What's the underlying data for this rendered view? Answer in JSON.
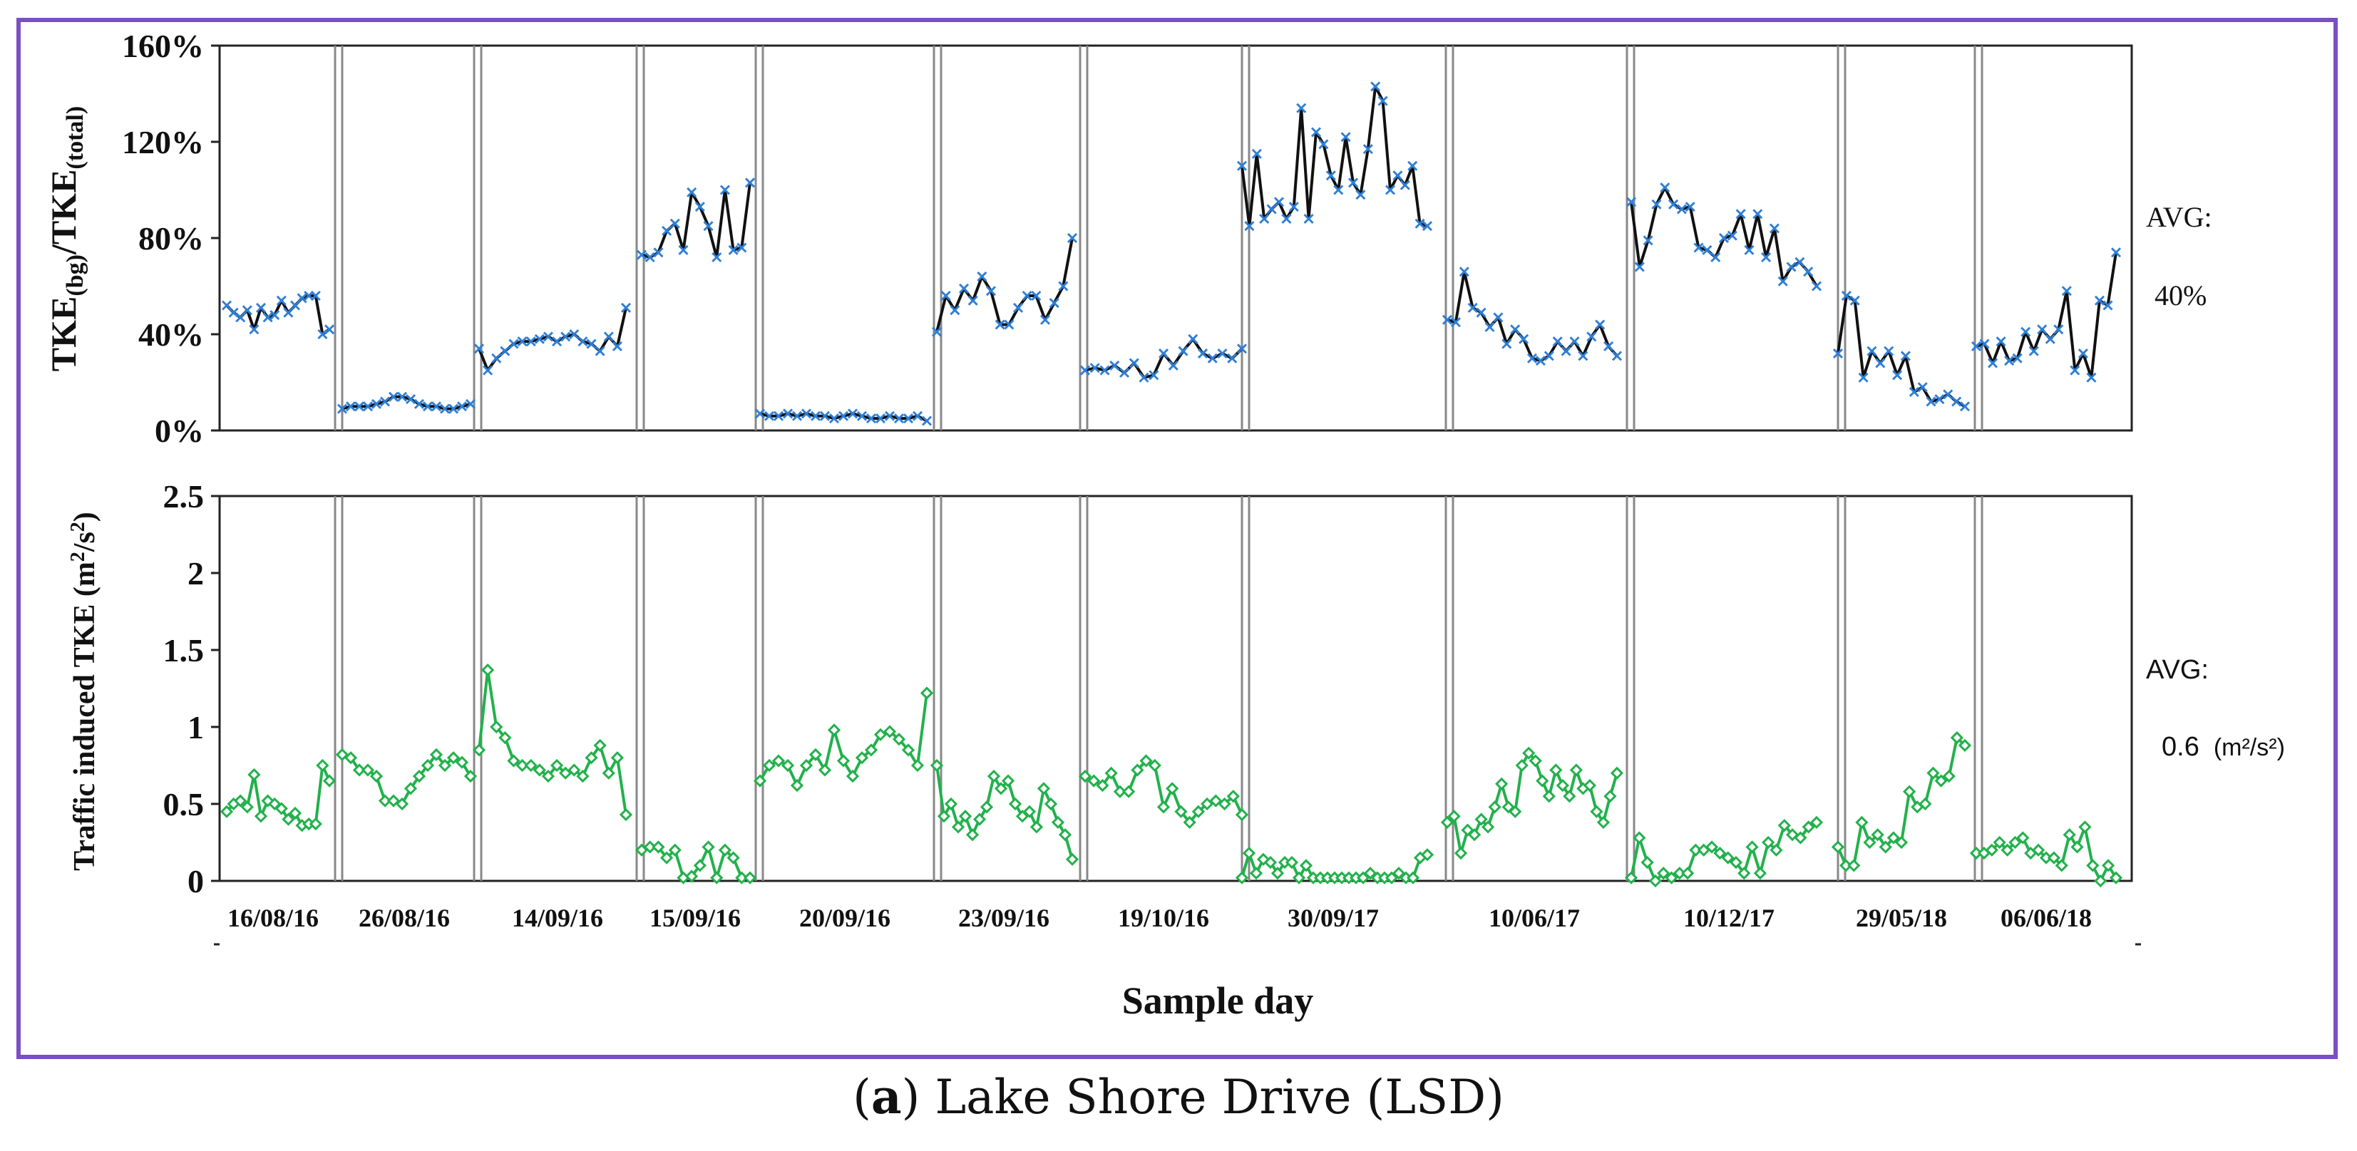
{
  "caption": {
    "letter": "a",
    "text": "Lake Shore Drive (LSD)"
  },
  "xlabel": "Sample day",
  "day_labels": [
    "16/08/16",
    "26/08/16",
    "14/09/16",
    "15/09/16",
    "20/09/16",
    "23/09/16",
    "19/10/16",
    "30/09/17",
    "10/06/17",
    "10/12/17",
    "29/05/18",
    "06/06/18"
  ],
  "top_panel": {
    "ylabel_html": "TKE(bg)/TKE(total)",
    "ylabel_parts": [
      "TKE",
      "(bg)",
      "/TKE",
      "(total)"
    ],
    "avg_label": "AVG:",
    "avg_value": "40%",
    "series_color": "#111111",
    "marker_color": "#2f7fd6"
  },
  "bottom_panel": {
    "ylabel_main": "Traffic induced TKE (m",
    "ylabel_unit_tail": "/s",
    "avg_label": "AVG:",
    "avg_value": "0.6",
    "avg_unit": "(m²/s²)",
    "series_color": "#22b14c",
    "marker_color": "#22b14c"
  },
  "chart_data": [
    {
      "type": "line",
      "title": "",
      "xlabel": "Sample day",
      "ylabel": "TKE(bg)/TKE(total)",
      "ylim": [
        0,
        160
      ],
      "yticks": [
        0,
        40,
        80,
        120,
        160
      ],
      "ytick_labels": [
        "0%",
        "40%",
        "80%",
        "120%",
        "160%"
      ],
      "series": [
        {
          "name": "16/08/16",
          "values": [
            52,
            49,
            47,
            50,
            42,
            51,
            47,
            48,
            54,
            49,
            52,
            55,
            56,
            56,
            40,
            42
          ]
        },
        {
          "name": "26/08/16",
          "values": [
            9,
            10,
            10,
            10,
            11,
            12,
            14,
            14,
            13,
            11,
            10,
            10,
            9,
            9,
            10,
            11
          ]
        },
        {
          "name": "14/09/16",
          "values": [
            34,
            25,
            30,
            33,
            36,
            37,
            37,
            38,
            39,
            37,
            39,
            40,
            37,
            36,
            33,
            39,
            35,
            51
          ]
        },
        {
          "name": "15/09/16",
          "values": [
            73,
            72,
            74,
            83,
            86,
            75,
            99,
            93,
            85,
            72,
            100,
            75,
            76,
            103
          ]
        },
        {
          "name": "20/09/16",
          "values": [
            7,
            6,
            6,
            7,
            6,
            7,
            6,
            6,
            5,
            6,
            7,
            6,
            5,
            5,
            6,
            5,
            5,
            6,
            4
          ]
        },
        {
          "name": "23/09/16",
          "values": [
            41,
            56,
            50,
            59,
            54,
            64,
            58,
            44,
            44,
            51,
            56,
            56,
            46,
            53,
            60,
            80
          ]
        },
        {
          "name": "19/10/16",
          "values": [
            25,
            26,
            25,
            27,
            24,
            28,
            22,
            23,
            32,
            27,
            33,
            38,
            32,
            30,
            32,
            30,
            34
          ]
        },
        {
          "name": "30/09/17",
          "values": [
            110,
            85,
            115,
            88,
            92,
            95,
            88,
            93,
            134,
            88,
            124,
            119,
            106,
            100,
            122,
            103,
            98,
            117,
            143,
            137,
            100,
            106,
            102,
            110,
            86,
            85
          ]
        },
        {
          "name": "10/06/17",
          "values": [
            46,
            45,
            66,
            51,
            49,
            43,
            47,
            36,
            42,
            38,
            30,
            29,
            31,
            37,
            33,
            37,
            31,
            39,
            44,
            35,
            31
          ]
        },
        {
          "name": "10/12/17",
          "values": [
            95,
            68,
            79,
            94,
            101,
            94,
            92,
            93,
            76,
            75,
            72,
            80,
            81,
            90,
            75,
            90,
            72,
            84,
            62,
            68,
            70,
            66,
            60
          ]
        },
        {
          "name": "29/05/18",
          "values": [
            32,
            56,
            54,
            22,
            33,
            28,
            33,
            23,
            31,
            16,
            18,
            12,
            13,
            15,
            12,
            10
          ]
        },
        {
          "name": "06/06/18",
          "values": [
            35,
            36,
            28,
            37,
            29,
            30,
            41,
            33,
            42,
            38,
            42,
            58,
            25,
            32,
            22,
            54,
            52,
            74
          ]
        }
      ]
    },
    {
      "type": "line",
      "title": "",
      "xlabel": "Sample day",
      "ylabel": "Traffic induced TKE (m²/s²)",
      "ylim": [
        0,
        2.5
      ],
      "yticks": [
        0,
        0.5,
        1,
        1.5,
        2,
        2.5
      ],
      "ytick_labels": [
        "0",
        "0.5",
        "1",
        "1.5",
        "2",
        "2.5"
      ],
      "series": [
        {
          "name": "16/08/16",
          "values": [
            0.45,
            0.5,
            0.52,
            0.48,
            0.69,
            0.42,
            0.52,
            0.5,
            0.47,
            0.4,
            0.44,
            0.36,
            0.37,
            0.37,
            0.75,
            0.65
          ]
        },
        {
          "name": "26/08/16",
          "values": [
            0.82,
            0.8,
            0.72,
            0.72,
            0.68,
            0.52,
            0.52,
            0.5,
            0.6,
            0.68,
            0.75,
            0.82,
            0.75,
            0.8,
            0.77,
            0.68
          ]
        },
        {
          "name": "14/09/16",
          "values": [
            0.85,
            1.37,
            1.0,
            0.93,
            0.78,
            0.75,
            0.75,
            0.72,
            0.68,
            0.75,
            0.7,
            0.72,
            0.68,
            0.8,
            0.88,
            0.7,
            0.8,
            0.43
          ]
        },
        {
          "name": "15/09/16",
          "values": [
            0.2,
            0.22,
            0.22,
            0.15,
            0.2,
            0.02,
            0.03,
            0.1,
            0.22,
            0.02,
            0.2,
            0.15,
            0.02,
            0.02
          ]
        },
        {
          "name": "20/09/16",
          "values": [
            0.65,
            0.75,
            0.78,
            0.75,
            0.62,
            0.75,
            0.82,
            0.72,
            0.98,
            0.78,
            0.68,
            0.8,
            0.85,
            0.95,
            0.97,
            0.92,
            0.85,
            0.75,
            1.22
          ]
        },
        {
          "name": "23/09/16",
          "values": [
            0.75,
            0.42,
            0.5,
            0.35,
            0.42,
            0.3,
            0.4,
            0.48,
            0.68,
            0.6,
            0.65,
            0.5,
            0.42,
            0.45,
            0.35,
            0.6,
            0.5,
            0.38,
            0.3,
            0.14
          ]
        },
        {
          "name": "19/10/16",
          "values": [
            0.68,
            0.65,
            0.62,
            0.7,
            0.58,
            0.58,
            0.72,
            0.78,
            0.75,
            0.48,
            0.6,
            0.45,
            0.38,
            0.45,
            0.5,
            0.52,
            0.5,
            0.55,
            0.43
          ]
        },
        {
          "name": "30/09/17",
          "values": [
            0.02,
            0.18,
            0.05,
            0.14,
            0.12,
            0.05,
            0.12,
            0.12,
            0.02,
            0.1,
            0.02,
            0.02,
            0.02,
            0.02,
            0.02,
            0.02,
            0.02,
            0.02,
            0.05,
            0.02,
            0.02,
            0.02,
            0.05,
            0.02,
            0.02,
            0.15,
            0.17
          ]
        },
        {
          "name": "10/06/17",
          "values": [
            0.38,
            0.42,
            0.18,
            0.33,
            0.3,
            0.4,
            0.35,
            0.48,
            0.63,
            0.48,
            0.45,
            0.75,
            0.83,
            0.78,
            0.65,
            0.55,
            0.72,
            0.62,
            0.55,
            0.72,
            0.6,
            0.62,
            0.45,
            0.38,
            0.55,
            0.7
          ]
        },
        {
          "name": "10/12/17",
          "values": [
            0.02,
            0.28,
            0.12,
            0.0,
            0.05,
            0.02,
            0.05,
            0.05,
            0.2,
            0.2,
            0.22,
            0.18,
            0.15,
            0.12,
            0.05,
            0.22,
            0.05,
            0.25,
            0.2,
            0.36,
            0.3,
            0.28,
            0.35,
            0.38
          ]
        },
        {
          "name": "29/05/18",
          "values": [
            0.22,
            0.1,
            0.1,
            0.38,
            0.25,
            0.3,
            0.22,
            0.28,
            0.25,
            0.58,
            0.48,
            0.5,
            0.7,
            0.65,
            0.68,
            0.93,
            0.88
          ]
        },
        {
          "name": "06/06/18",
          "values": [
            0.18,
            0.18,
            0.2,
            0.25,
            0.2,
            0.25,
            0.28,
            0.18,
            0.2,
            0.15,
            0.15,
            0.1,
            0.3,
            0.22,
            0.35,
            0.1,
            0.0,
            0.1,
            0.02
          ]
        }
      ]
    }
  ]
}
